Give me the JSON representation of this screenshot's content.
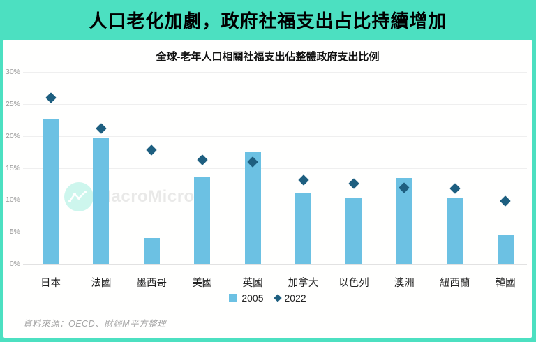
{
  "header": {
    "title": "人口老化加劇，政府社福支出占比持續增加"
  },
  "watermark": {
    "text": "MacroMicro",
    "icon": "macromicro-line-chart-icon"
  },
  "footer": {
    "source": "資料來源：OECD、財經M平方整理"
  },
  "colors": {
    "banner_teal": "#4CE0C1",
    "bar_2005": "#6CC1E3",
    "diamond_2022": "#1E5F80",
    "gridline": "#EFEFEF",
    "ytick_text": "#999999",
    "xtick_text": "#222222",
    "source_text": "#A6A6A6"
  },
  "chart_data": {
    "type": "bar",
    "title": "全球-老年人口相關社福支出佔整體政府支出比例",
    "categories": [
      "日本",
      "法國",
      "墨西哥",
      "美國",
      "英國",
      "加拿大",
      "以色列",
      "澳洲",
      "紐西蘭",
      "韓國"
    ],
    "series": [
      {
        "name": "2005",
        "type": "bar",
        "marker": "square",
        "color": "#6CC1E3",
        "values": [
          22.6,
          19.6,
          4.0,
          13.6,
          17.5,
          11.1,
          10.3,
          13.4,
          10.4,
          4.5
        ]
      },
      {
        "name": "2022",
        "type": "scatter",
        "marker": "diamond",
        "color": "#1E5F80",
        "values": [
          26.0,
          21.2,
          17.8,
          16.3,
          15.9,
          13.1,
          12.6,
          11.9,
          11.8,
          9.8
        ]
      }
    ],
    "xlabel": "",
    "ylabel": "",
    "ylim": [
      0,
      30
    ],
    "yticks": [
      0,
      5,
      10,
      15,
      20,
      25,
      30
    ],
    "ytick_format": "{v}%",
    "grid": true,
    "legend_position": "bottom"
  }
}
